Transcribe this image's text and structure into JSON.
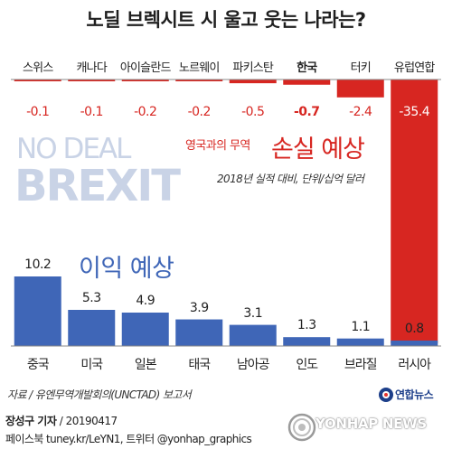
{
  "title": "노딜 브렉시트 시 울고 웃는 나라는?",
  "colors": {
    "loss_bar": "#d72621",
    "gain_bar": "#3f66b7",
    "loss_text": "#d72621",
    "gain_text": "#3f66b7",
    "watermark_text": "#c9d3e6"
  },
  "background_text": {
    "line1": "NO DEAL",
    "line2": "BREXIT"
  },
  "loss_section": {
    "subtitle": "영국과의 무역",
    "title": "손실 예상",
    "unit_note": "2018년 실적 대비, 단위/십억 달러"
  },
  "gain_section": {
    "title": "이익 예상"
  },
  "chart_data": [
    {
      "type": "bar",
      "title": "손실 예상",
      "categories": [
        "스위스",
        "캐나다",
        "아이슬란드",
        "노르웨이",
        "파키스탄",
        "한국",
        "터키",
        "유럽연합"
      ],
      "values": [
        -0.1,
        -0.1,
        -0.2,
        -0.2,
        -0.5,
        -0.7,
        -2.4,
        -35.4
      ],
      "value_labels": [
        "-0.1",
        "-0.1",
        "-0.2",
        "-0.2",
        "-0.5",
        "-0.7",
        "-2.4",
        "-35.4"
      ],
      "highlight": "한국",
      "color": "#d72621",
      "ylim": [
        -35.4,
        0
      ],
      "grid": false
    },
    {
      "type": "bar",
      "title": "이익 예상",
      "categories": [
        "중국",
        "미국",
        "일본",
        "태국",
        "남아공",
        "인도",
        "브라질",
        "러시아"
      ],
      "values": [
        10.2,
        5.3,
        4.9,
        3.9,
        3.1,
        1.3,
        1.1,
        0.8
      ],
      "value_labels": [
        "10.2",
        "5.3",
        "4.9",
        "3.9",
        "3.1",
        "1.3",
        "1.1",
        "0.8"
      ],
      "color": "#3f66b7",
      "ylim": [
        0,
        10.2
      ],
      "grid": false
    }
  ],
  "source": "자료 / 유엔무역개발회의(UNCTAD) 보고서",
  "logo_text": "연합뉴스",
  "byline": {
    "author": "장성구 기자",
    "date": "20190417"
  },
  "social": "페이스북 tuney.kr/LeYN1, 트위터 @yonhap_graphics",
  "watermark": "YONHAP NEWS"
}
